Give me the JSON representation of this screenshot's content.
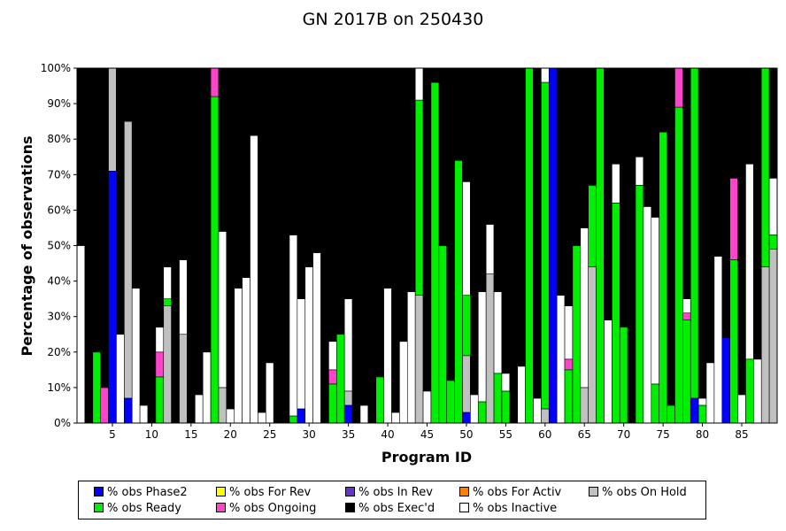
{
  "chart_data": {
    "type": "bar",
    "stacked": true,
    "title": "GN 2017B on 250430",
    "xlabel": "Program ID",
    "ylabel": "Percentage of observations",
    "ylim": [
      0,
      100
    ],
    "y_ticks": [
      "0%",
      "10%",
      "20%",
      "30%",
      "40%",
      "50%",
      "60%",
      "70%",
      "80%",
      "90%",
      "100%"
    ],
    "x_ticks": [
      5,
      10,
      15,
      20,
      25,
      30,
      35,
      40,
      45,
      50,
      55,
      60,
      65,
      70,
      75,
      80,
      85
    ],
    "x_tick_labels": [
      "5",
      "10",
      "15",
      "20",
      "25",
      "30",
      "35",
      "40",
      "45",
      "50",
      "55",
      "60",
      "65",
      "70",
      "75",
      "80",
      "85"
    ],
    "legend_position": "bottom",
    "series": [
      {
        "name": "% obs Phase2",
        "color": "#0000ff"
      },
      {
        "name": "% obs For Rev",
        "color": "#ffff00"
      },
      {
        "name": "% obs In Rev",
        "color": "#6633cc"
      },
      {
        "name": "% obs For Activ",
        "color": "#ff8000"
      },
      {
        "name": "% obs On Hold",
        "color": "#c0c0c0"
      },
      {
        "name": "% obs Ready",
        "color": "#00ee00"
      },
      {
        "name": "% obs Ongoing",
        "color": "#ff44cc"
      },
      {
        "name": "% obs Exec'd",
        "color": "#000000"
      },
      {
        "name": "% obs Inactive",
        "color": "#ffffff"
      }
    ],
    "stack_order": [
      "Phase2",
      "On Hold",
      "Ready",
      "Ongoing",
      "Inactive",
      "Exec'd"
    ],
    "programs": [
      {
        "x": 1,
        "inactive": 50
      },
      {
        "x": 2
      },
      {
        "x": 3,
        "ready": 20
      },
      {
        "x": 4,
        "ongoing": 10
      },
      {
        "x": 5,
        "phase2": 71,
        "onhold": 29
      },
      {
        "x": 6,
        "inactive": 25
      },
      {
        "x": 7,
        "phase2": 7,
        "onhold": 78
      },
      {
        "x": 8,
        "inactive": 38
      },
      {
        "x": 9,
        "inactive": 5
      },
      {
        "x": 10
      },
      {
        "x": 11,
        "ready": 13,
        "ongoing": 7,
        "inactive": 7
      },
      {
        "x": 12,
        "onhold": 33,
        "ready": 2,
        "inactive": 9
      },
      {
        "x": 13
      },
      {
        "x": 14,
        "onhold": 25,
        "inactive": 21
      },
      {
        "x": 15
      },
      {
        "x": 16,
        "inactive": 8
      },
      {
        "x": 17,
        "inactive": 20
      },
      {
        "x": 18,
        "ready": 92,
        "ongoing": 8
      },
      {
        "x": 19,
        "onhold": 10,
        "inactive": 44
      },
      {
        "x": 20,
        "inactive": 4
      },
      {
        "x": 21,
        "inactive": 38
      },
      {
        "x": 22,
        "inactive": 41
      },
      {
        "x": 23,
        "inactive": 81
      },
      {
        "x": 24,
        "inactive": 3
      },
      {
        "x": 25,
        "inactive": 17
      },
      {
        "x": 26
      },
      {
        "x": 27
      },
      {
        "x": 28,
        "ready": 2,
        "inactive": 51
      },
      {
        "x": 29,
        "phase2": 4,
        "inactive": 31
      },
      {
        "x": 30,
        "inactive": 44
      },
      {
        "x": 31,
        "inactive": 48
      },
      {
        "x": 32
      },
      {
        "x": 33,
        "ready": 11,
        "ongoing": 4,
        "inactive": 8
      },
      {
        "x": 34,
        "ready": 25
      },
      {
        "x": 35,
        "phase2": 5,
        "onhold": 4,
        "inactive": 26
      },
      {
        "x": 36
      },
      {
        "x": 37,
        "inactive": 5
      },
      {
        "x": 38
      },
      {
        "x": 39,
        "ready": 13
      },
      {
        "x": 40,
        "inactive": 38
      },
      {
        "x": 41,
        "inactive": 3
      },
      {
        "x": 42,
        "inactive": 23
      },
      {
        "x": 43,
        "inactive": 37
      },
      {
        "x": 44,
        "onhold": 36,
        "ready": 55,
        "inactive": 9
      },
      {
        "x": 45,
        "inactive": 9
      },
      {
        "x": 46,
        "ready": 96
      },
      {
        "x": 47,
        "ready": 50
      },
      {
        "x": 48,
        "ready": 12
      },
      {
        "x": 49,
        "ready": 74
      },
      {
        "x": 50,
        "phase2": 3,
        "onhold": 16,
        "ready": 17,
        "inactive": 32
      },
      {
        "x": 51,
        "inactive": 8
      },
      {
        "x": 52,
        "ready": 6,
        "inactive": 31
      },
      {
        "x": 53,
        "onhold": 42,
        "inactive": 14
      },
      {
        "x": 54,
        "ready": 14,
        "inactive": 23
      },
      {
        "x": 55,
        "ready": 9,
        "inactive": 5
      },
      {
        "x": 56
      },
      {
        "x": 57,
        "inactive": 16
      },
      {
        "x": 58,
        "ready": 100
      },
      {
        "x": 59,
        "inactive": 7
      },
      {
        "x": 60,
        "onhold": 4,
        "ready": 92,
        "inactive": 4
      },
      {
        "x": 61,
        "phase2": 100
      },
      {
        "x": 62,
        "inactive": 36
      },
      {
        "x": 63,
        "ready": 15,
        "ongoing": 3,
        "inactive": 15
      },
      {
        "x": 64,
        "ready": 50
      },
      {
        "x": 65,
        "onhold": 10,
        "inactive": 45
      },
      {
        "x": 66,
        "onhold": 44,
        "ready": 23
      },
      {
        "x": 67,
        "ready": 100
      },
      {
        "x": 68,
        "inactive": 29
      },
      {
        "x": 69,
        "ready": 62,
        "inactive": 11
      },
      {
        "x": 70,
        "ready": 27
      },
      {
        "x": 71
      },
      {
        "x": 72,
        "ready": 67,
        "inactive": 8
      },
      {
        "x": 73,
        "inactive": 61
      },
      {
        "x": 74,
        "ready": 11,
        "inactive": 47
      },
      {
        "x": 75,
        "ready": 82
      },
      {
        "x": 76,
        "ready": 5
      },
      {
        "x": 77,
        "ready": 89,
        "ongoing": 11
      },
      {
        "x": 78,
        "ready": 29,
        "ongoing": 2,
        "inactive": 4
      },
      {
        "x": 79,
        "phase2": 7,
        "ready": 93
      },
      {
        "x": 80,
        "ready": 5,
        "inactive": 2
      },
      {
        "x": 81,
        "inactive": 17
      },
      {
        "x": 82,
        "inactive": 47
      },
      {
        "x": 83,
        "phase2": 24
      },
      {
        "x": 84,
        "ready": 46,
        "ongoing": 23
      },
      {
        "x": 85,
        "inactive": 8
      },
      {
        "x": 86,
        "ready": 18,
        "inactive": 55
      },
      {
        "x": 87,
        "inactive": 18
      },
      {
        "x": 88,
        "onhold": 44,
        "ready": 56
      },
      {
        "x": 89,
        "onhold": 49,
        "ready": 4,
        "inactive": 16
      }
    ]
  }
}
